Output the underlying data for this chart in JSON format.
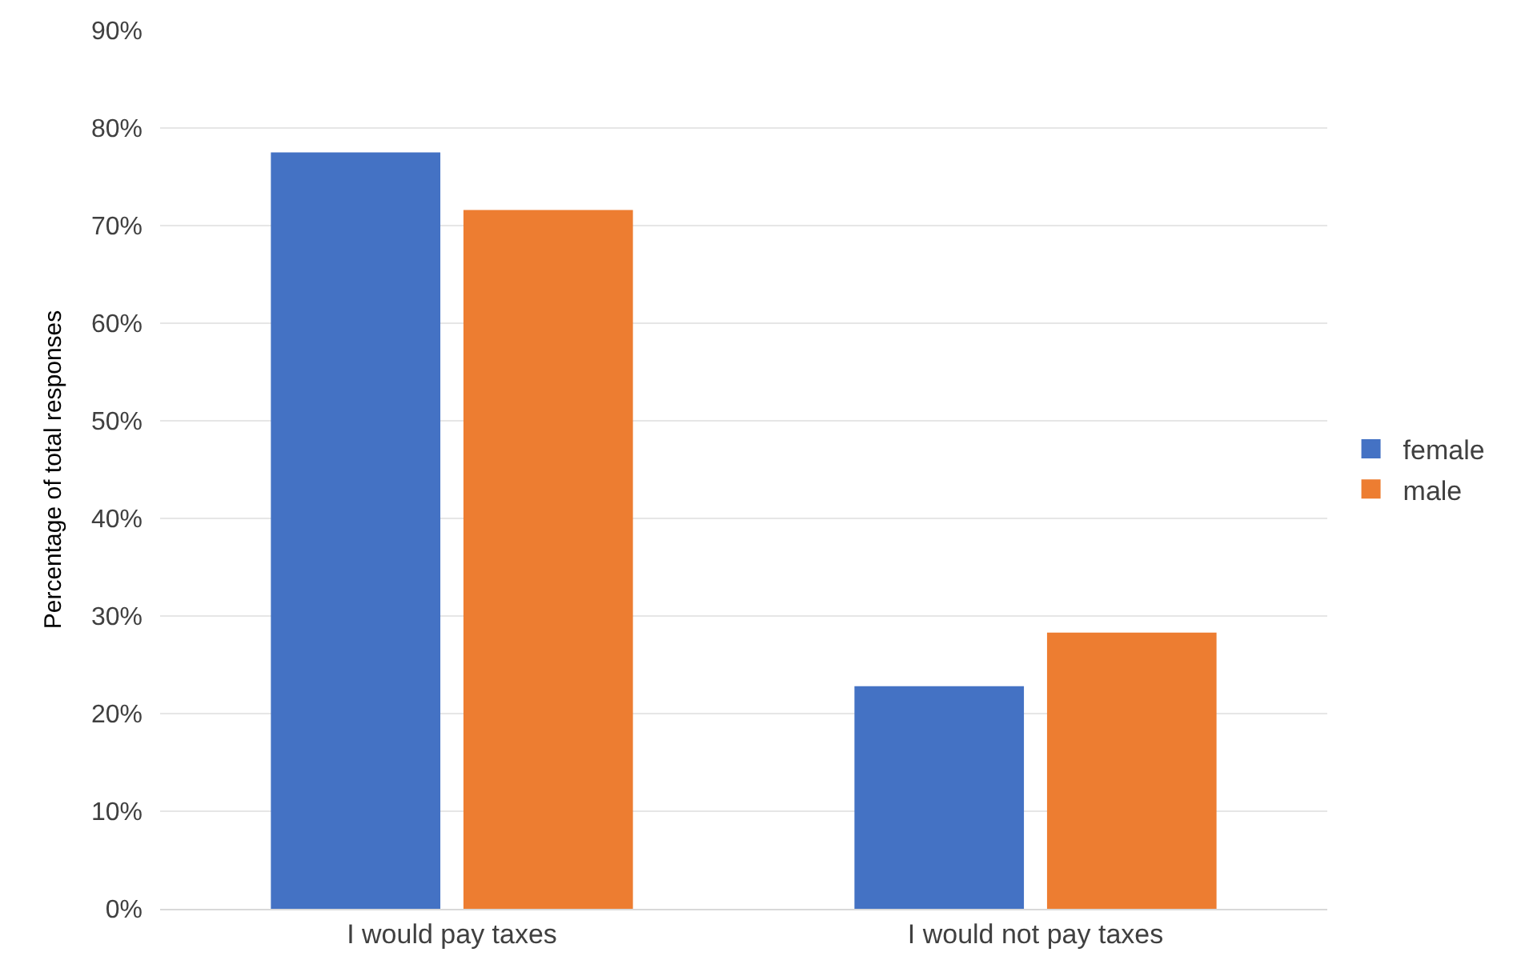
{
  "chart_data": {
    "type": "bar",
    "ylabel": "Percentage of total responses",
    "categories": [
      "I would pay taxes",
      "I would not pay taxes"
    ],
    "series": [
      {
        "name": "female",
        "color": "#4472c4",
        "values": [
          77.5,
          22.8
        ]
      },
      {
        "name": "male",
        "color": "#ed7d31",
        "values": [
          71.6,
          28.3
        ]
      }
    ],
    "ylim": [
      0,
      90
    ],
    "yticks": [
      {
        "value": 0,
        "label": "0%"
      },
      {
        "value": 10,
        "label": "10%"
      },
      {
        "value": 20,
        "label": "20%"
      },
      {
        "value": 30,
        "label": "30%"
      },
      {
        "value": 40,
        "label": "40%"
      },
      {
        "value": 50,
        "label": "50%"
      },
      {
        "value": 60,
        "label": "60%"
      },
      {
        "value": 70,
        "label": "70%"
      },
      {
        "value": 80,
        "label": "80%"
      },
      {
        "value": 90,
        "label": "90%"
      }
    ],
    "grid": "y",
    "legend": "right"
  }
}
